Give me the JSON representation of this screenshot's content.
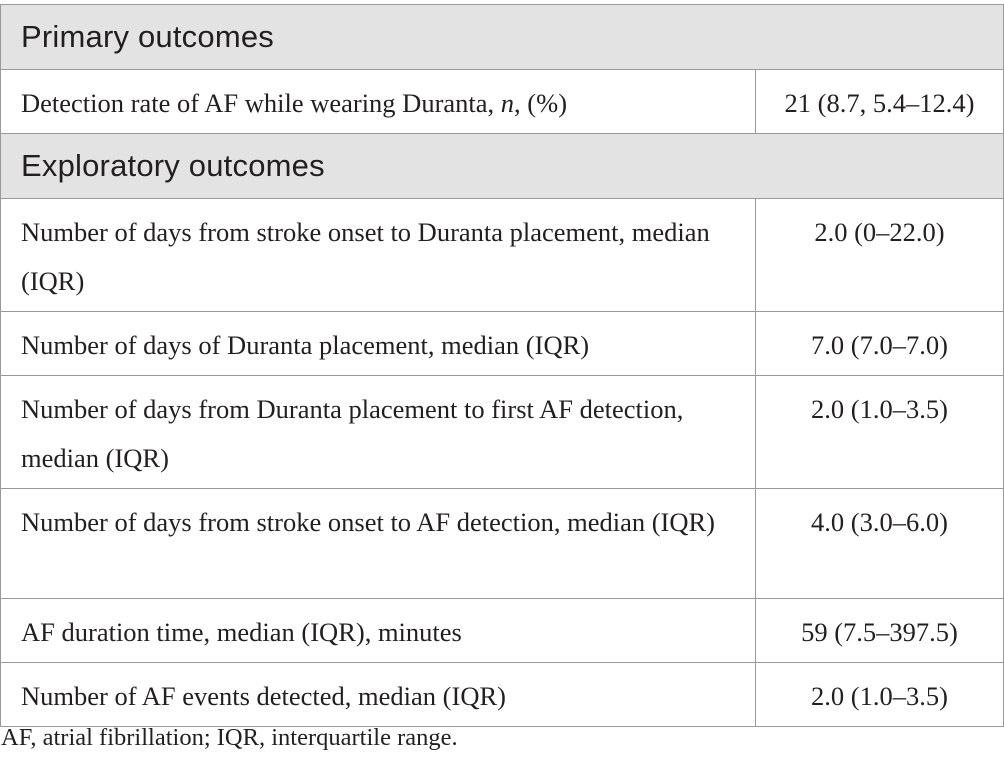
{
  "table": {
    "sections": [
      {
        "title": "Primary outcomes",
        "rows": [
          {
            "label_pre": "Detection rate of AF while wearing Duranta, ",
            "label_italic": "n",
            "label_post": ", (%)",
            "value": "21 (8.7, 5.4–12.4)"
          }
        ]
      },
      {
        "title": "Exploratory outcomes",
        "rows": [
          {
            "label_pre": "Number of days from stroke onset to Duranta placement, median (IQR)",
            "label_italic": "",
            "label_post": "",
            "value": "2.0 (0–22.0)"
          },
          {
            "label_pre": "Number of days of Duranta placement, median (IQR)",
            "label_italic": "",
            "label_post": "",
            "value": "7.0 (7.0–7.0)"
          },
          {
            "label_pre": "Number of days from Duranta placement to first AF detection, median (IQR)",
            "label_italic": "",
            "label_post": "",
            "value": "2.0 (1.0–3.5)"
          },
          {
            "label_pre": "Number of days from stroke onset to AF detection, median (IQR)",
            "label_italic": "",
            "label_post": "",
            "value": "4.0 (3.0–6.0)"
          },
          {
            "label_pre": "AF duration time, median (IQR), minutes",
            "label_italic": "",
            "label_post": "",
            "value": "59 (7.5–397.5)"
          },
          {
            "label_pre": "Number of AF events detected, median (IQR)",
            "label_italic": "",
            "label_post": "",
            "value": "2.0 (1.0–3.5)"
          }
        ]
      }
    ]
  },
  "footnote": "AF, atrial fibrillation; IQR, interquartile range."
}
